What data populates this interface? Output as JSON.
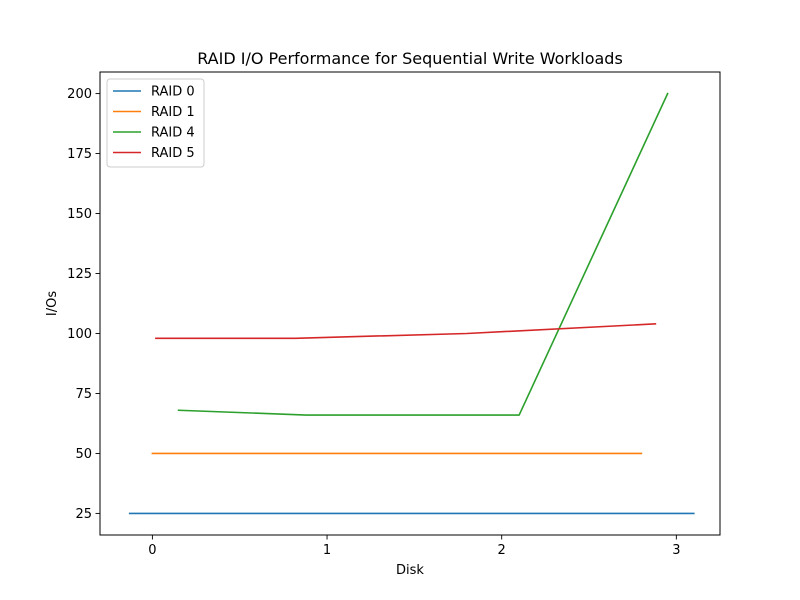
{
  "chart_data": {
    "type": "line",
    "title": "RAID I/O Performance for Sequential Write Workloads",
    "xlabel": "Disk",
    "ylabel": "I/Os",
    "xlim": [
      -0.3,
      3.25
    ],
    "ylim": [
      16,
      209
    ],
    "x_ticks": [
      0,
      1,
      2,
      3
    ],
    "y_ticks": [
      25,
      50,
      75,
      100,
      125,
      150,
      175,
      200
    ],
    "legend_position": "top-left",
    "grid": false,
    "series": [
      {
        "name": "RAID 0",
        "color": "#1f77b4",
        "x": [
          -0.13,
          3.1
        ],
        "y": [
          25,
          25
        ]
      },
      {
        "name": "RAID 1",
        "color": "#ff7f0e",
        "x": [
          0.0,
          2.8
        ],
        "y": [
          50,
          50
        ]
      },
      {
        "name": "RAID 4",
        "color": "#2ca02c",
        "x": [
          0.15,
          0.88,
          2.1,
          2.95
        ],
        "y": [
          68,
          66,
          66,
          200
        ]
      },
      {
        "name": "RAID 5",
        "color": "#d62728",
        "x": [
          0.02,
          0.82,
          1.8,
          2.88
        ],
        "y": [
          98,
          98,
          100,
          104
        ]
      }
    ]
  }
}
